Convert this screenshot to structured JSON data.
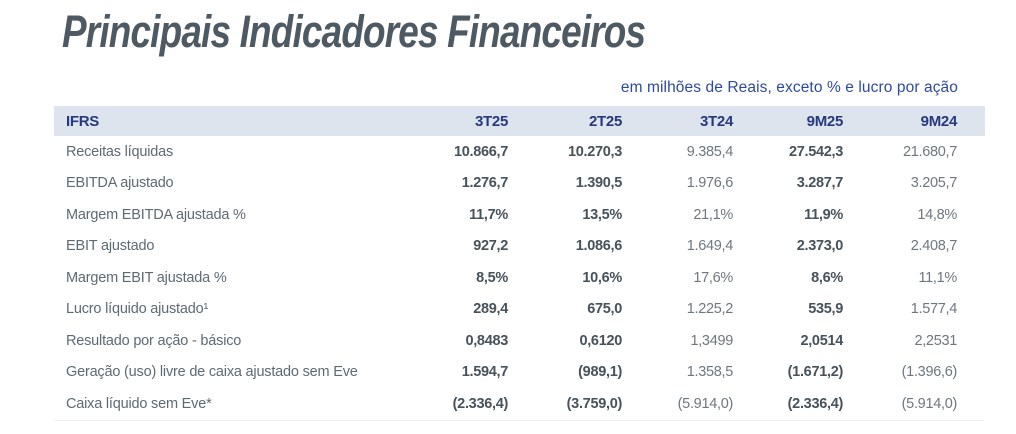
{
  "page": {
    "title": "Principais Indicadores Financeiros",
    "subtitle": "em milhões de Reais, exceto % e lucro por ação"
  },
  "colors": {
    "title_text": "#4d5a63",
    "subtitle_text": "#2d4a9e",
    "header_background": "#dde4ee",
    "header_text": "#27397e",
    "row_label_text": "#5d6a74",
    "value_bold_text": "#47525b",
    "value_regular_text": "#6e777f"
  },
  "table": {
    "header": {
      "c0": "IFRS",
      "c1": "3T25",
      "c2": "2T25",
      "c3": "3T24",
      "c4": "9M25",
      "c5": "9M24"
    },
    "rows": [
      {
        "label": "Receitas líquidas",
        "values": [
          "10.866,7",
          "10.270,3",
          "9.385,4",
          "27.542,3",
          "21.680,7"
        ]
      },
      {
        "label": "EBITDA ajustado",
        "values": [
          "1.276,7",
          "1.390,5",
          "1.976,6",
          "3.287,7",
          "3.205,7"
        ]
      },
      {
        "label": "Margem EBITDA ajustada %",
        "values": [
          "11,7%",
          "13,5%",
          "21,1%",
          "11,9%",
          "14,8%"
        ]
      },
      {
        "label": "EBIT ajustado",
        "values": [
          "927,2",
          "1.086,6",
          "1.649,4",
          "2.373,0",
          "2.408,7"
        ]
      },
      {
        "label": "Margem EBIT ajustada %",
        "values": [
          "8,5%",
          "10,6%",
          "17,6%",
          "8,6%",
          "11,1%"
        ]
      },
      {
        "label": "Lucro líquido ajustado¹",
        "values": [
          "289,4",
          "675,0",
          "1.225,2",
          "535,9",
          "1.577,4"
        ]
      },
      {
        "label": "Resultado por ação - básico",
        "values": [
          "0,8483",
          "0,6120",
          "1,3499",
          "2,0514",
          "2,2531"
        ]
      },
      {
        "label": "Geração (uso) livre de caixa ajustado sem Eve",
        "values": [
          "1.594,7",
          "(989,1)",
          "1.358,5",
          "(1.671,2)",
          "(1.396,6)"
        ]
      },
      {
        "label": "Caixa líquido sem Eve*",
        "values": [
          "(2.336,4)",
          "(3.759,0)",
          "(5.914,0)",
          "(2.336,4)",
          "(5.914,0)"
        ]
      }
    ]
  },
  "chart_data": {
    "type": "table",
    "title": "Principais Indicadores Financeiros",
    "subtitle": "em milhões de Reais, exceto % e lucro por ação",
    "columns": [
      "IFRS",
      "3T25",
      "2T25",
      "3T24",
      "9M25",
      "9M24"
    ],
    "rows": [
      [
        "Receitas líquidas",
        "10.866,7",
        "10.270,3",
        "9.385,4",
        "27.542,3",
        "21.680,7"
      ],
      [
        "EBITDA ajustado",
        "1.276,7",
        "1.390,5",
        "1.976,6",
        "3.287,7",
        "3.205,7"
      ],
      [
        "Margem EBITDA ajustada %",
        "11,7%",
        "13,5%",
        "21,1%",
        "11,9%",
        "14,8%"
      ],
      [
        "EBIT ajustado",
        "927,2",
        "1.086,6",
        "1.649,4",
        "2.373,0",
        "2.408,7"
      ],
      [
        "Margem EBIT ajustada %",
        "8,5%",
        "10,6%",
        "17,6%",
        "8,6%",
        "11,1%"
      ],
      [
        "Lucro líquido ajustado¹",
        "289,4",
        "675,0",
        "1.225,2",
        "535,9",
        "1.577,4"
      ],
      [
        "Resultado por ação - básico",
        "0,8483",
        "0,6120",
        "1,3499",
        "2,0514",
        "2,2531"
      ],
      [
        "Geração (uso) livre de caixa ajustado sem Eve",
        "1.594,7",
        "(989,1)",
        "1.358,5",
        "(1.671,2)",
        "(1.396,6)"
      ],
      [
        "Caixa líquido sem Eve*",
        "(2.336,4)",
        "(3.759,0)",
        "(5.914,0)",
        "(2.336,4)",
        "(5.914,0)"
      ]
    ]
  }
}
